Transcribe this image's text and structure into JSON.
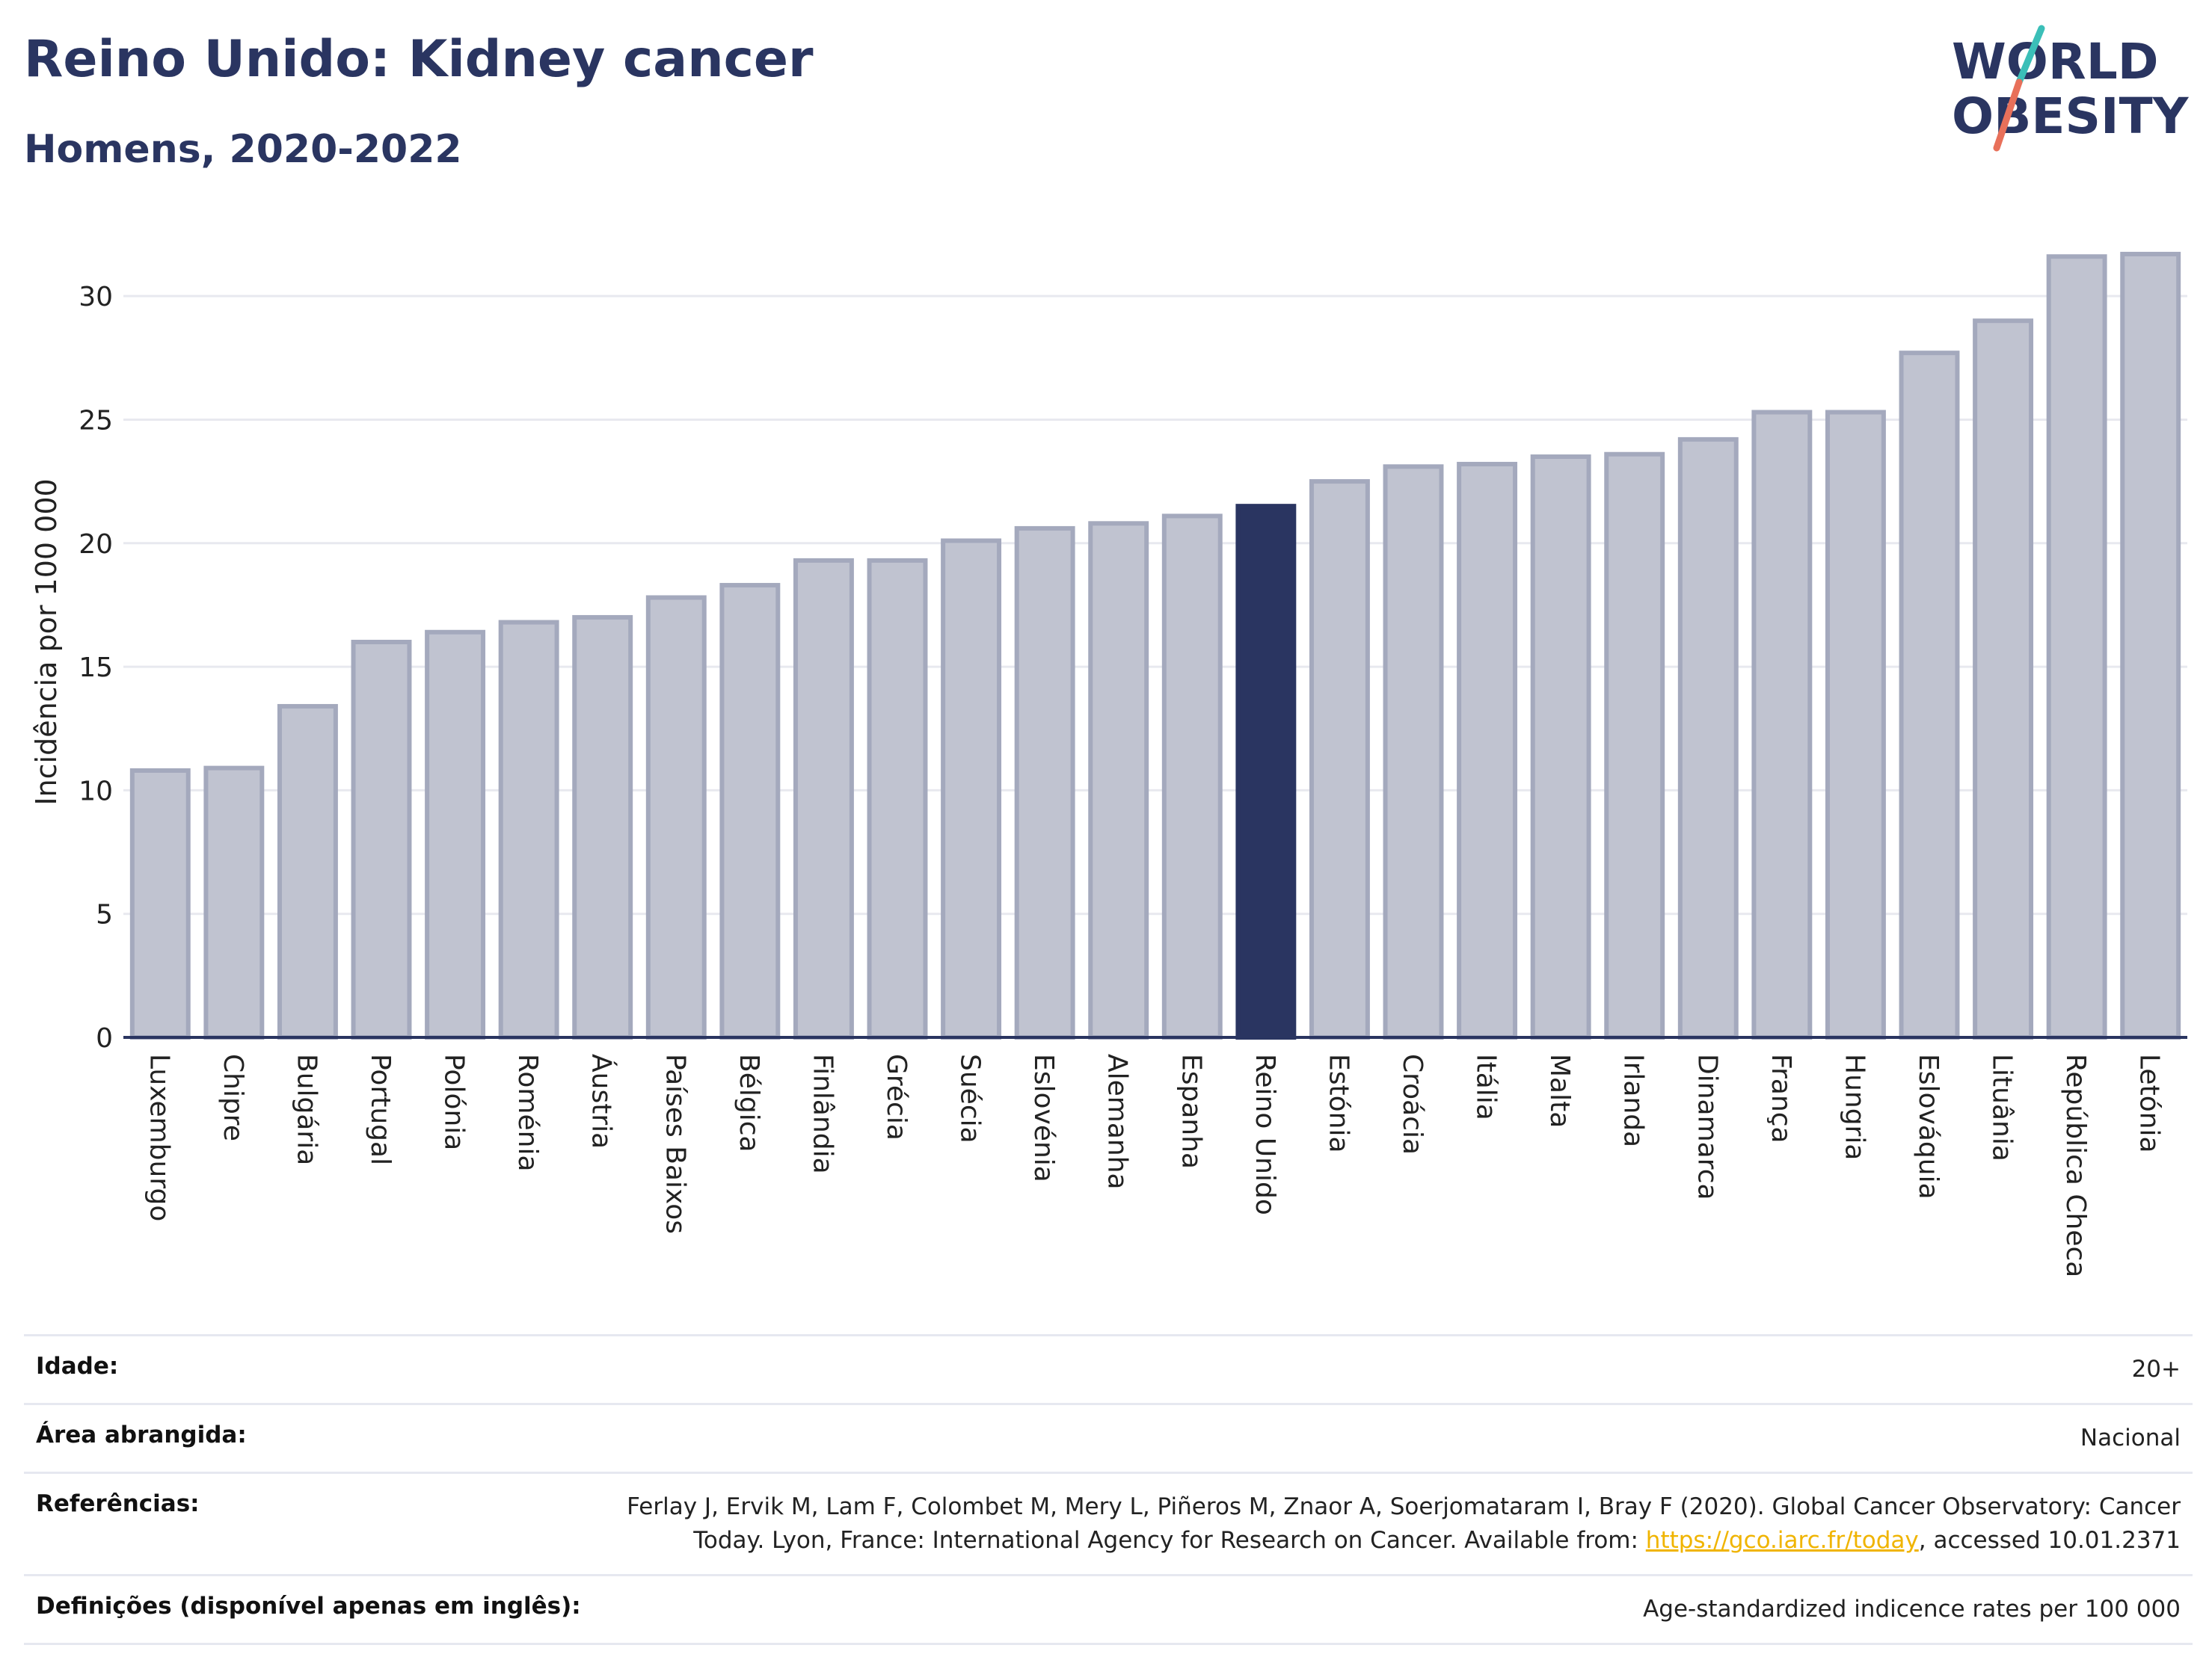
{
  "header": {
    "title": "Reino Unido: Kidney cancer",
    "subtitle": "Homens, 2020-2022"
  },
  "logo": {
    "line1": "WORLD",
    "line2": "OBESITY",
    "accent_teal": "#3bbfb8",
    "accent_coral": "#e8705a"
  },
  "colors": {
    "bar": "#c0c3d0",
    "bar_border": "#a4a9bd",
    "highlight": "#2a3561",
    "grid": "#e8e9ef",
    "axis": "#2a3561"
  },
  "chart_data": {
    "type": "bar",
    "title": "Reino Unido: Kidney cancer",
    "subtitle": "Homens, 2020-2022",
    "xlabel": "",
    "ylabel": "Incidência por 100 000",
    "ylim": [
      0,
      32
    ],
    "yticks": [
      0,
      5,
      10,
      15,
      20,
      25,
      30
    ],
    "grid": true,
    "highlight": "Reino Unido",
    "categories": [
      "Luxemburgo",
      "Chipre",
      "Bulgária",
      "Portugal",
      "Polónia",
      "Roménia",
      "Áustria",
      "Países Baixos",
      "Bélgica",
      "Finlândia",
      "Grécia",
      "Suécia",
      "Eslovénia",
      "Alemanha",
      "Espanha",
      "Reino Unido",
      "Estónia",
      "Croácia",
      "Itália",
      "Malta",
      "Irlanda",
      "Dinamarca",
      "França",
      "Hungria",
      "Eslováquia",
      "Lituânia",
      "República Checa",
      "Letónia"
    ],
    "values": [
      10.8,
      10.9,
      13.4,
      16.0,
      16.4,
      16.8,
      17.0,
      17.8,
      18.3,
      19.3,
      19.3,
      20.1,
      20.6,
      20.8,
      21.1,
      21.5,
      22.5,
      23.1,
      23.2,
      23.5,
      23.6,
      24.2,
      25.3,
      25.3,
      27.7,
      29.0,
      31.6,
      31.7
    ]
  },
  "footer": {
    "rows": [
      {
        "label": "Idade:",
        "value": "20+"
      },
      {
        "label": "Área abrangida:",
        "value": "Nacional"
      },
      {
        "label": "Referências:",
        "value_pre": "Ferlay J, Ervik M, Lam F, Colombet M, Mery L, Piñeros M, Znaor A, Soerjomataram I, Bray F (2020). Global Cancer Observatory: Cancer Today. Lyon, France: International Agency for Research on Cancer. Available from: ",
        "link": "https://gco.iarc.fr/today",
        "value_post": ", accessed 10.01.2371"
      },
      {
        "label": "Definições (disponível apenas em inglês):",
        "value": "Age-standardized indicence rates per 100 000"
      }
    ]
  }
}
